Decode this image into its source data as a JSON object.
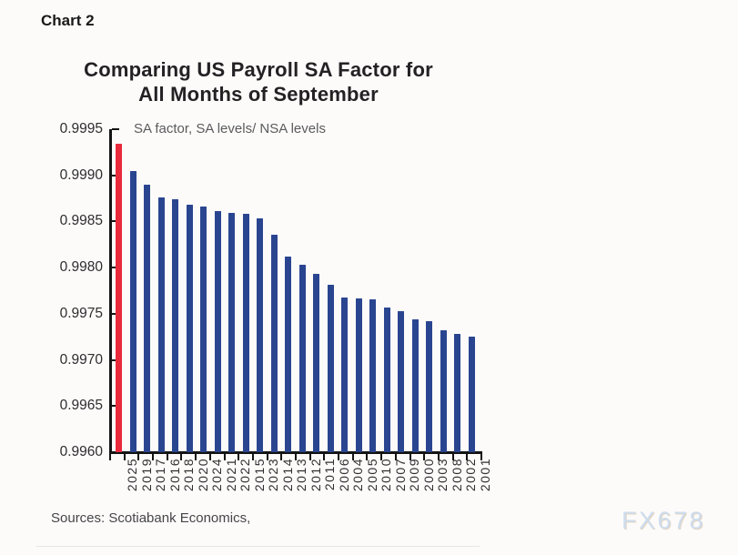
{
  "page": {
    "chart_label": "Chart 2",
    "sources": "Sources: Scotiabank Economics,",
    "watermark": "FX678",
    "background_color": "#fdfbfa"
  },
  "chart_data": {
    "type": "bar",
    "title": "Comparing US Payroll SA Factor for All Months of September",
    "title_line1": "Comparing US Payroll SA Factor for",
    "title_line2": "All Months of September",
    "subtitle": "SA factor, SA levels/ NSA levels",
    "xlabel": "",
    "ylabel": "",
    "categories": [
      "2025",
      "2019",
      "2017",
      "2016",
      "2018",
      "2020",
      "2024",
      "2021",
      "2022",
      "2015",
      "2023",
      "2014",
      "2013",
      "2012",
      "2011",
      "2006",
      "2004",
      "2005",
      "2010",
      "2007",
      "2009",
      "2000",
      "2003",
      "2008",
      "2002",
      "2001"
    ],
    "values": [
      0.99934,
      0.99905,
      0.9989,
      0.99876,
      0.99874,
      0.99868,
      0.99866,
      0.99861,
      0.99859,
      0.99858,
      0.99853,
      0.99836,
      0.99812,
      0.99803,
      0.99793,
      0.99781,
      0.99768,
      0.99767,
      0.99766,
      0.99757,
      0.99753,
      0.99744,
      0.99742,
      0.99732,
      0.99728,
      0.99725
    ],
    "highlight_category": "2025",
    "highlight_index": 0,
    "bar_color": "#2a4590",
    "highlight_color": "#e92a3c",
    "axis_color": "#141414",
    "ylim": [
      0.996,
      0.9995
    ],
    "ytick_labels": [
      "0.9995",
      "0.9990",
      "0.9985",
      "0.9980",
      "0.9975",
      "0.9970",
      "0.9965",
      "0.9960"
    ],
    "grid": false,
    "legend_position": "none"
  }
}
